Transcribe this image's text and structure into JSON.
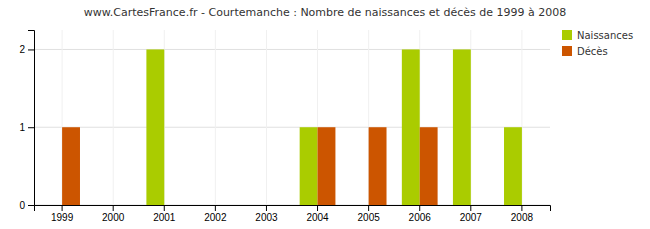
{
  "chart_data": {
    "type": "bar",
    "title": "www.CartesFrance.fr - Courtemanche : Nombre de naissances et décès de 1999 à 2008",
    "categories": [
      "1999",
      "2000",
      "2001",
      "2002",
      "2003",
      "2004",
      "2005",
      "2006",
      "2007",
      "2008"
    ],
    "series": [
      {
        "name": "Naissances",
        "color": "#aacc00",
        "values": [
          0,
          0,
          2,
          0,
          0,
          1,
          0,
          2,
          2,
          1
        ]
      },
      {
        "name": "Décès",
        "color": "#cc5500",
        "values": [
          1,
          0,
          0,
          0,
          0,
          1,
          1,
          1,
          0,
          0
        ]
      }
    ],
    "ylim": [
      0,
      2.25
    ],
    "yticks": [
      0,
      1,
      2
    ],
    "grid": true,
    "legend": "upper right"
  }
}
